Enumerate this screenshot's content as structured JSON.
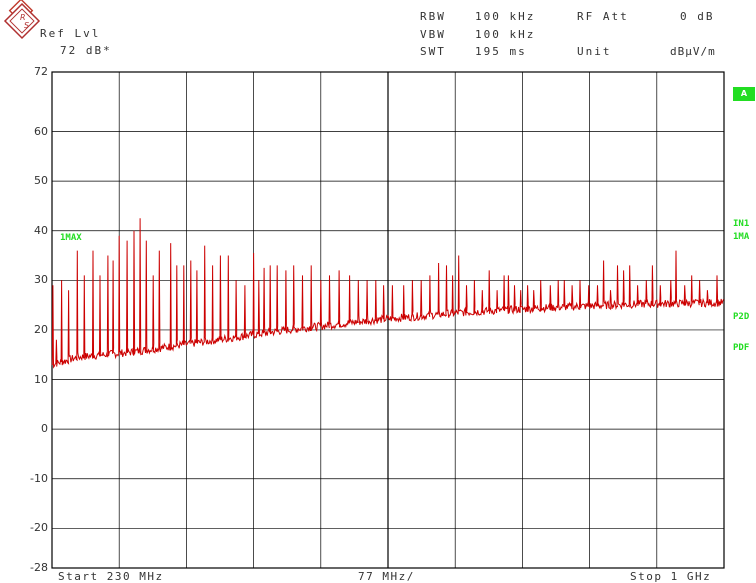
{
  "header": {
    "ref_lvl_label": "Ref Lvl",
    "ref_lvl_value": "72 dB*",
    "rbw_label": "RBW",
    "rbw_value": "100 kHz",
    "vbw_label": "VBW",
    "vbw_value": "100 kHz",
    "swt_label": "SWT",
    "swt_value": "195 ms",
    "rf_att_label": "RF Att",
    "rf_att_value": "0 dB",
    "unit_label": "Unit",
    "unit_value": "dBµV/m"
  },
  "footer": {
    "start": "Start 230 MHz",
    "span": "77 MHz/",
    "stop": "Stop 1 GHz"
  },
  "side_labels": {
    "a_box": "A",
    "in1": "IN1",
    "max1_right": "1MA",
    "p2d": "P2D",
    "pdf": "PDF",
    "trace_label": "1MAX"
  },
  "colors": {
    "trace": "#cc0000",
    "annotation": "#22dd22",
    "grid": "#000000"
  },
  "icons": {
    "logo": "rohde-schwarz-logo-icon"
  },
  "chart_data": {
    "type": "line",
    "title": "",
    "xlabel": "",
    "ylabel": "",
    "x_range_mhz": [
      230,
      1000
    ],
    "ylim": [
      -28,
      72
    ],
    "ytick_labels": [
      "72",
      "60",
      "50",
      "40",
      "30",
      "20",
      "10",
      "0",
      "-10",
      "-20",
      "-28"
    ],
    "grid": true,
    "series": [
      {
        "name": "1MAX",
        "baseline": [
          [
            230,
            13
          ],
          [
            260,
            14.5
          ],
          [
            320,
            15.5
          ],
          [
            400,
            17.5
          ],
          [
            500,
            20
          ],
          [
            600,
            22
          ],
          [
            700,
            23.5
          ],
          [
            800,
            24.5
          ],
          [
            900,
            25.2
          ],
          [
            1000,
            25.5
          ]
        ],
        "peaks": [
          [
            231,
            29
          ],
          [
            235,
            18
          ],
          [
            241,
            30
          ],
          [
            249,
            28
          ],
          [
            259,
            36
          ],
          [
            267,
            31
          ],
          [
            277,
            36
          ],
          [
            285,
            31
          ],
          [
            294,
            35
          ],
          [
            300,
            34
          ],
          [
            307,
            39
          ],
          [
            316,
            38
          ],
          [
            324,
            40
          ],
          [
            331,
            42.5
          ],
          [
            338,
            38
          ],
          [
            346,
            31
          ],
          [
            353,
            36
          ],
          [
            366,
            37.5
          ],
          [
            373,
            33
          ],
          [
            381,
            33
          ],
          [
            389,
            34
          ],
          [
            396,
            32
          ],
          [
            405,
            37
          ],
          [
            414,
            33
          ],
          [
            423,
            35
          ],
          [
            432,
            35
          ],
          [
            441,
            30
          ],
          [
            451,
            29
          ],
          [
            461,
            35.5
          ],
          [
            467,
            30
          ],
          [
            473,
            32.5
          ],
          [
            480,
            33
          ],
          [
            488,
            33
          ],
          [
            498,
            32
          ],
          [
            507,
            33
          ],
          [
            517,
            31
          ],
          [
            527,
            33
          ],
          [
            538,
            30
          ],
          [
            548,
            31
          ],
          [
            559,
            32
          ],
          [
            571,
            31
          ],
          [
            581,
            30
          ],
          [
            591,
            30
          ],
          [
            601,
            30
          ],
          [
            610,
            29
          ],
          [
            620,
            29
          ],
          [
            633,
            29
          ],
          [
            643,
            30
          ],
          [
            653,
            30
          ],
          [
            663,
            31
          ],
          [
            673,
            33.5
          ],
          [
            682,
            33
          ],
          [
            689,
            31
          ],
          [
            696,
            35
          ],
          [
            705,
            29
          ],
          [
            714,
            30
          ],
          [
            723,
            28
          ],
          [
            731,
            32
          ],
          [
            740,
            28
          ],
          [
            748,
            31
          ],
          [
            753,
            31
          ],
          [
            760,
            29
          ],
          [
            767,
            28
          ],
          [
            775,
            29
          ],
          [
            782,
            28
          ],
          [
            790,
            30
          ],
          [
            801,
            29
          ],
          [
            810,
            30
          ],
          [
            817,
            30
          ],
          [
            826,
            29
          ],
          [
            835,
            30
          ],
          [
            845,
            29
          ],
          [
            855,
            29
          ],
          [
            862,
            34
          ],
          [
            870,
            28
          ],
          [
            878,
            33
          ],
          [
            885,
            32
          ],
          [
            892,
            33
          ],
          [
            901,
            29
          ],
          [
            911,
            30
          ],
          [
            918,
            33
          ],
          [
            927,
            29
          ],
          [
            939,
            30
          ],
          [
            945,
            36
          ],
          [
            955,
            29
          ],
          [
            963,
            31
          ],
          [
            972,
            30
          ],
          [
            981,
            28
          ],
          [
            992,
            31
          ]
        ]
      }
    ]
  }
}
